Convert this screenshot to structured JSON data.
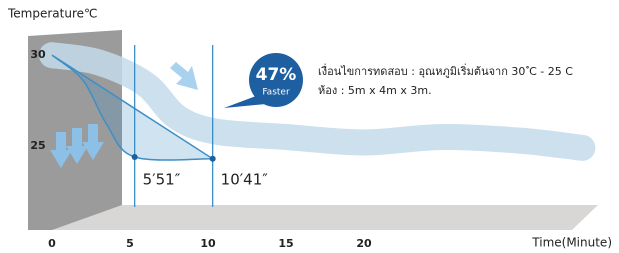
{
  "chart_data": {
    "type": "line",
    "y_label": "Temperature℃",
    "x_label": "Time(Minute)",
    "xlim": [
      0,
      35
    ],
    "ylim": [
      21.5,
      31
    ],
    "xticks": [
      0,
      5,
      10,
      15,
      20
    ],
    "yticks": [
      30,
      25
    ],
    "series": [
      {
        "color": "#c3dbea",
        "x": [
          0,
          3,
          6,
          8,
          10.5,
          15,
          20,
          25,
          30,
          34
        ],
        "values": [
          30,
          29.6,
          28.4,
          26.6,
          25.8,
          25.5,
          25.2,
          25.5,
          25.3,
          24.9
        ]
      },
      {
        "color": "#3f8fc6",
        "x": [
          0,
          2,
          3.5,
          5.3,
          10.3
        ],
        "values": [
          30,
          28.6,
          26.2,
          24.4,
          24.3
        ]
      }
    ],
    "markers": [
      {
        "x": 5.3,
        "y": 24.4,
        "label": "5′51″"
      },
      {
        "x": 10.3,
        "y": 24.3,
        "label": "10′41″"
      }
    ],
    "badge": {
      "value": "47%",
      "text": "Faster"
    },
    "notes": [
      "เงื่อนไขการทดสอบ : อุณหภูมิเริ่มต้นจาก 30 ํC - 25 C",
      "ห้อง : 5m x 4m x 3m."
    ]
  }
}
